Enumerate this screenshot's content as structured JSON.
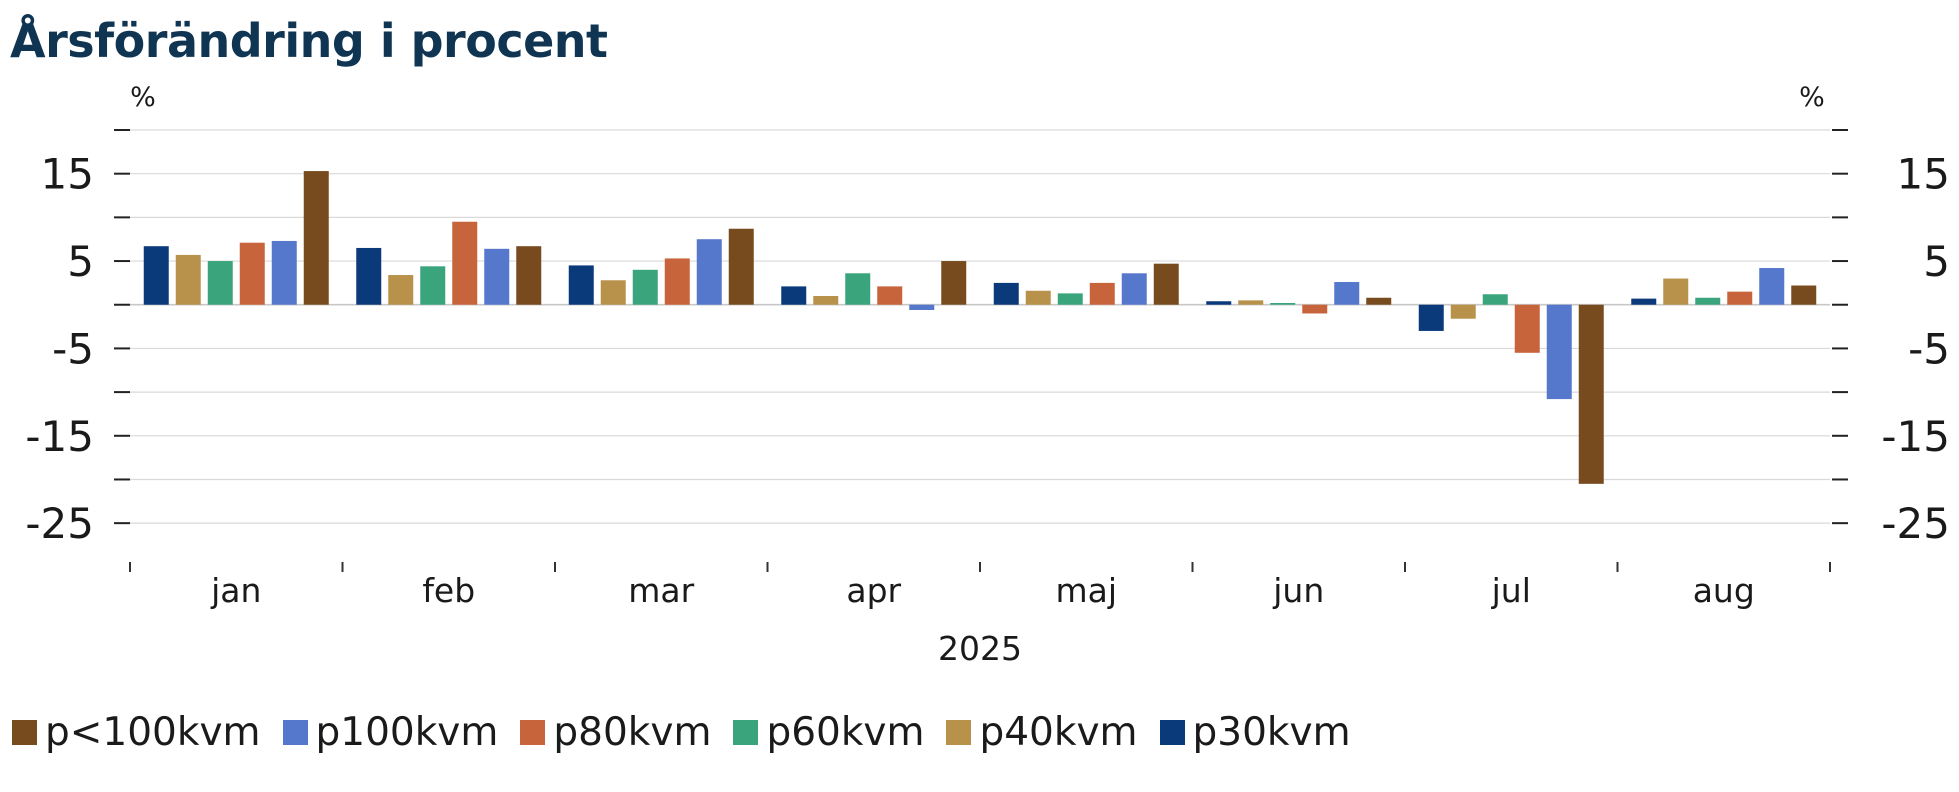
{
  "chart_data": {
    "type": "bar",
    "title": "Årsförändring i procent",
    "y_unit_left": "%",
    "y_unit_right": "%",
    "xlabel": "2025",
    "ylim": [
      -27.5,
      20
    ],
    "yticks": [
      15,
      5,
      -5,
      -15,
      -25
    ],
    "categories": [
      "jan",
      "feb",
      "mar",
      "apr",
      "maj",
      "jun",
      "jul",
      "aug"
    ],
    "grid": true,
    "legend_position": "bottom",
    "series": [
      {
        "name": "p30kvm",
        "color": "#0b3a7a",
        "values": [
          6.7,
          6.5,
          4.5,
          2.1,
          2.5,
          0.4,
          -3.0,
          0.7
        ]
      },
      {
        "name": "p40kvm",
        "color": "#b8924a",
        "values": [
          5.7,
          3.4,
          2.8,
          1.0,
          1.6,
          0.5,
          -1.6,
          3.0
        ]
      },
      {
        "name": "p60kvm",
        "color": "#3aa57c",
        "values": [
          5.0,
          4.4,
          4.0,
          3.6,
          1.3,
          0.2,
          1.2,
          0.8
        ]
      },
      {
        "name": "p80kvm",
        "color": "#c8643c",
        "values": [
          7.1,
          9.5,
          5.3,
          2.1,
          2.5,
          -1.0,
          -5.5,
          1.5
        ]
      },
      {
        "name": "p100kvm",
        "color": "#5577cc",
        "values": [
          7.3,
          6.4,
          7.5,
          -0.6,
          3.6,
          2.6,
          -10.8,
          4.2
        ]
      },
      {
        "name": "p<100kvm",
        "color": "#784b1e",
        "values": [
          15.3,
          6.7,
          8.7,
          5.0,
          4.7,
          0.8,
          -20.5,
          2.2
        ]
      }
    ],
    "legend_order": [
      "p<100kvm",
      "p100kvm",
      "p80kvm",
      "p60kvm",
      "p40kvm",
      "p30kvm"
    ]
  }
}
